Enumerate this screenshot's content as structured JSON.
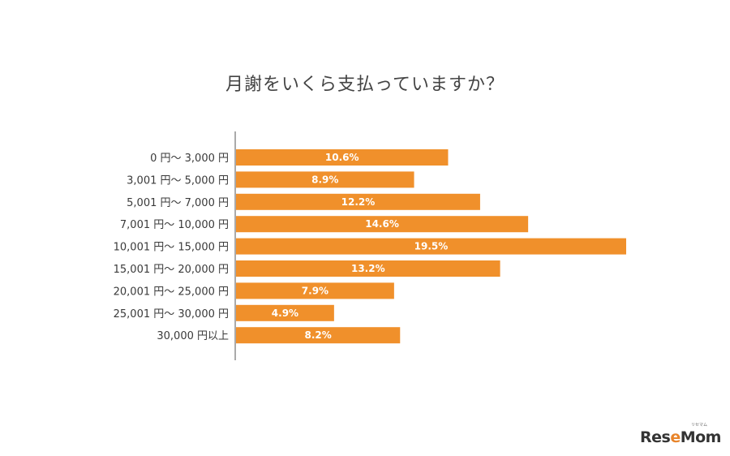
{
  "chart_data": {
    "type": "bar",
    "orientation": "horizontal",
    "title": "月謝をいくら支払っていますか？",
    "categories": [
      "0 円～ 3,000 円",
      "3,001 円～ 5,000 円",
      "5,001 円～ 7,000 円",
      "7,001 円～ 10,000 円",
      "10,001 円～ 15,000 円",
      "15,001 円～ 20,000 円",
      "20,001 円～ 25,000 円",
      "25,001 円～ 30,000 円",
      "30,000 円以上"
    ],
    "values": [
      10.6,
      8.9,
      12.2,
      14.6,
      19.5,
      13.2,
      7.9,
      4.9,
      8.2
    ],
    "value_labels": [
      "10.6%",
      "8.9%",
      "12.2%",
      "14.6%",
      "19.5%",
      "13.2%",
      "7.9%",
      "4.9%",
      "8.2%"
    ],
    "unit": "%",
    "bar_color": "#f0902b",
    "grid": false,
    "legend": "none"
  },
  "branding": {
    "logo_text_1": "Res",
    "logo_text_2": "e",
    "logo_text_3": "Mom",
    "logo_ruby": "リセマム"
  }
}
